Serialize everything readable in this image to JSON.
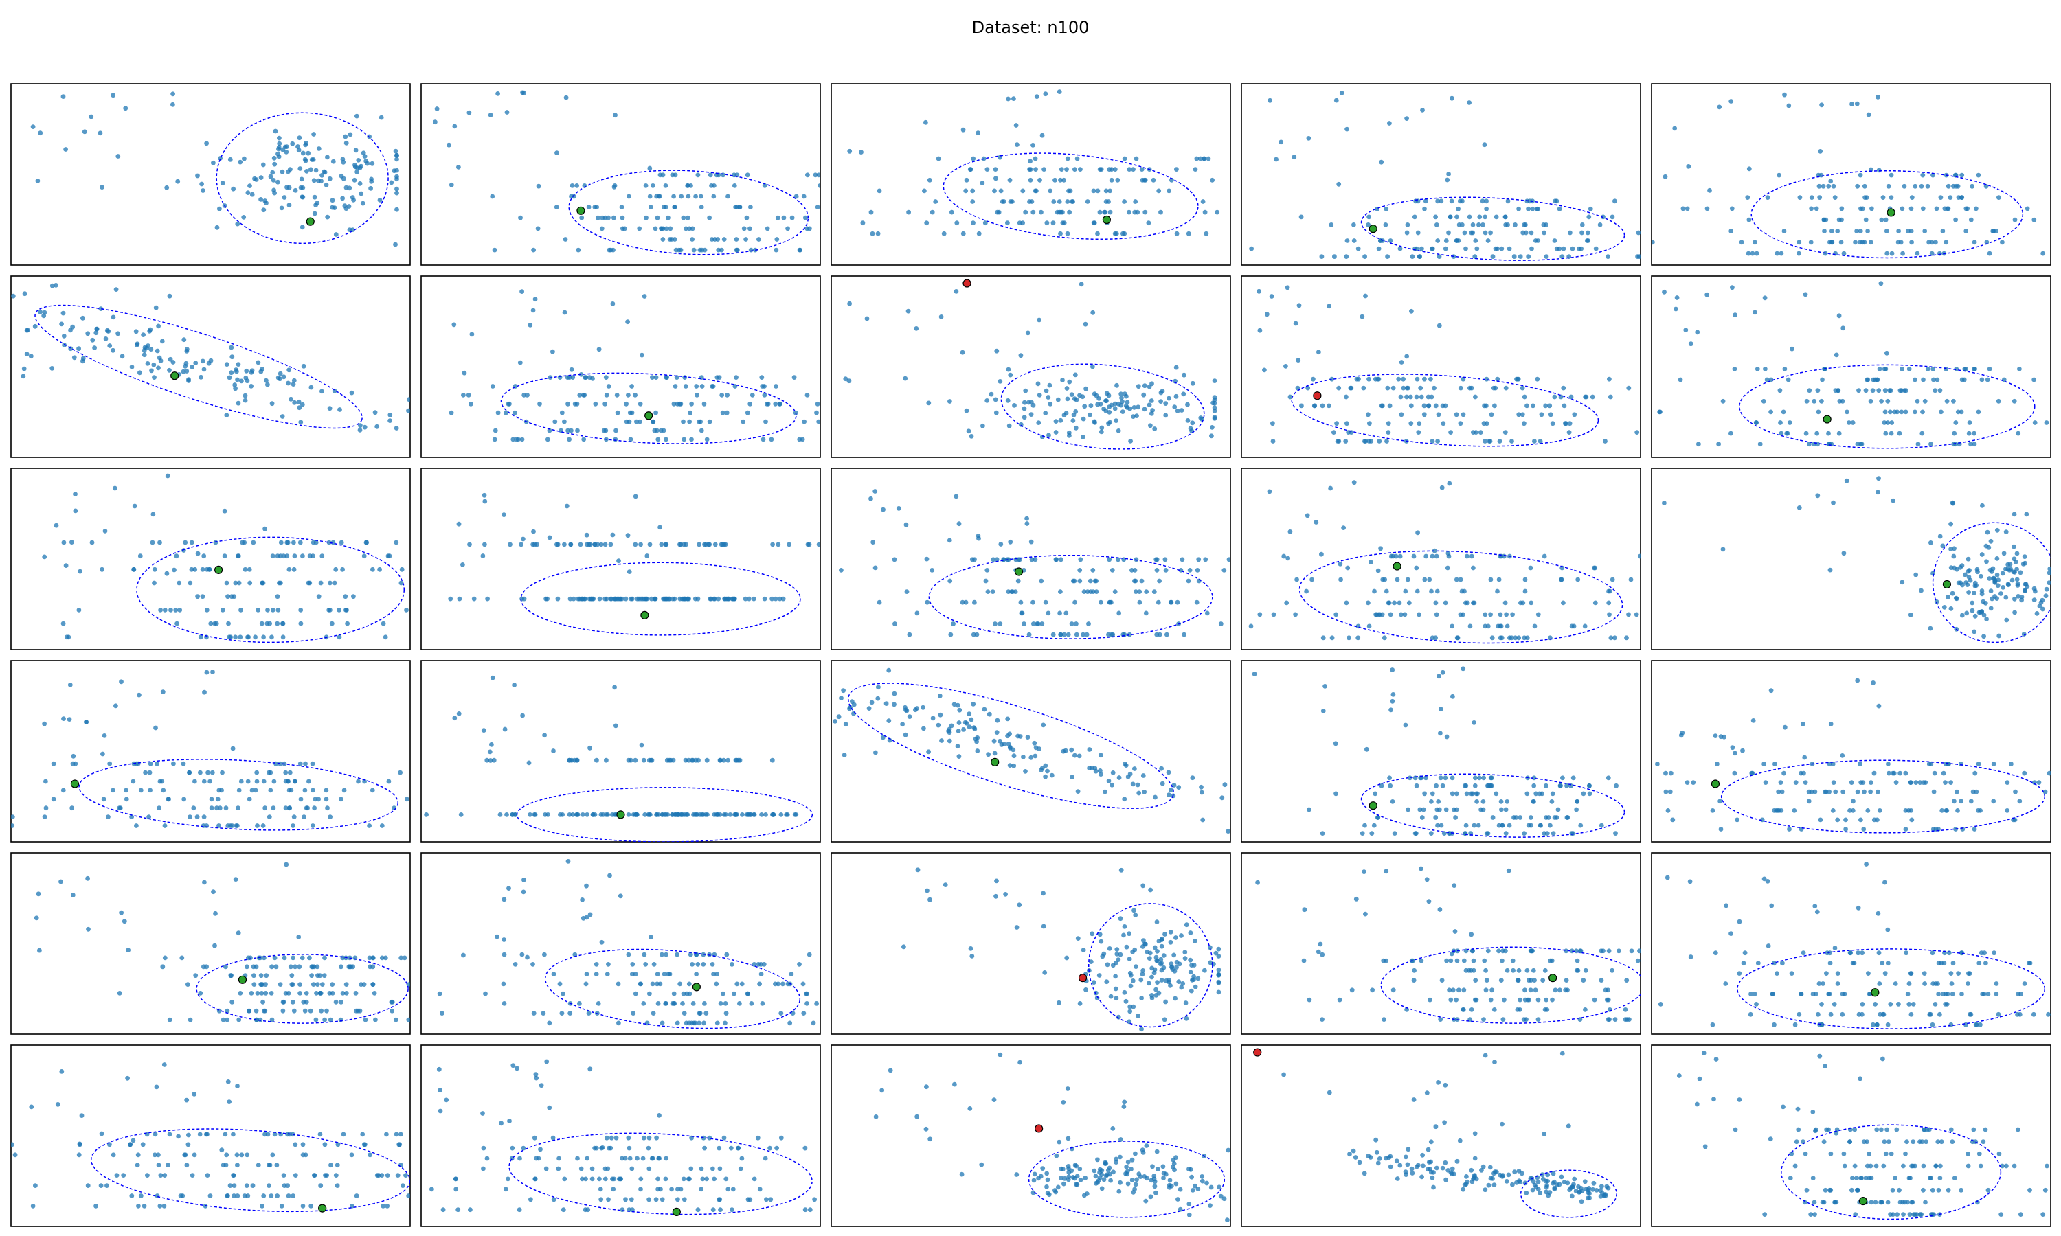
{
  "figure": {
    "title": "Dataset: n100",
    "rows": 6,
    "cols": 5,
    "colors": {
      "points": "#1f77b4",
      "ellipse": "#0000ff",
      "center_marker": "#2ca02c",
      "outlier_marker": "#d62728",
      "frame": "#000000"
    }
  },
  "chart_data": [
    {
      "type": "scatter",
      "row": 1,
      "col": 1,
      "pattern": "blob_right",
      "ellipse": {
        "center": [
          0.73,
          0.52
        ],
        "semi_axes": [
          0.43,
          0.36
        ],
        "angle_deg": 0
      },
      "markers": [
        {
          "kind": "center",
          "color": "#2ca02c",
          "x": 0.75,
          "y": 0.76
        }
      ]
    },
    {
      "type": "scatter",
      "row": 1,
      "col": 2,
      "pattern": "banded",
      "ellipse": {
        "center": [
          0.67,
          0.71
        ],
        "semi_axes": [
          0.6,
          0.23
        ],
        "angle_deg": 3
      },
      "markers": [
        {
          "kind": "center",
          "color": "#2ca02c",
          "x": 0.4,
          "y": 0.7
        }
      ]
    },
    {
      "type": "scatter",
      "row": 1,
      "col": 3,
      "pattern": "banded",
      "ellipse": {
        "center": [
          0.6,
          0.62
        ],
        "semi_axes": [
          0.64,
          0.23
        ],
        "angle_deg": 5
      },
      "markers": [
        {
          "kind": "center",
          "color": "#2ca02c",
          "x": 0.69,
          "y": 0.75
        }
      ]
    },
    {
      "type": "scatter",
      "row": 1,
      "col": 4,
      "pattern": "banded",
      "ellipse": {
        "center": [
          0.63,
          0.8
        ],
        "semi_axes": [
          0.66,
          0.17
        ],
        "angle_deg": 3
      },
      "markers": [
        {
          "kind": "center",
          "color": "#2ca02c",
          "x": 0.33,
          "y": 0.8
        }
      ]
    },
    {
      "type": "scatter",
      "row": 1,
      "col": 5,
      "pattern": "banded",
      "ellipse": {
        "center": [
          0.59,
          0.72
        ],
        "semi_axes": [
          0.68,
          0.24
        ],
        "angle_deg": 0
      },
      "markers": [
        {
          "kind": "center",
          "color": "#2ca02c",
          "x": 0.6,
          "y": 0.71
        }
      ]
    },
    {
      "type": "scatter",
      "row": 2,
      "col": 1,
      "pattern": "diagonal",
      "ellipse": {
        "center": [
          0.47,
          0.5
        ],
        "semi_axes": [
          0.86,
          0.18
        ],
        "angle_deg": 18
      },
      "markers": [
        {
          "kind": "center",
          "color": "#2ca02c",
          "x": 0.41,
          "y": 0.55
        }
      ]
    },
    {
      "type": "scatter",
      "row": 2,
      "col": 2,
      "pattern": "banded",
      "ellipse": {
        "center": [
          0.57,
          0.73
        ],
        "semi_axes": [
          0.74,
          0.19
        ],
        "angle_deg": 3
      },
      "markers": [
        {
          "kind": "center",
          "color": "#2ca02c",
          "x": 0.57,
          "y": 0.77
        }
      ]
    },
    {
      "type": "scatter",
      "row": 2,
      "col": 3,
      "pattern": "blob_right",
      "ellipse": {
        "center": [
          0.68,
          0.72
        ],
        "semi_axes": [
          0.51,
          0.23
        ],
        "angle_deg": 5
      },
      "markers": [
        {
          "kind": "outlier",
          "color": "#d62728",
          "x": 0.34,
          "y": 0.04
        }
      ]
    },
    {
      "type": "scatter",
      "row": 2,
      "col": 4,
      "pattern": "banded",
      "ellipse": {
        "center": [
          0.51,
          0.74
        ],
        "semi_axes": [
          0.77,
          0.19
        ],
        "angle_deg": 4
      },
      "markers": [
        {
          "kind": "outlier",
          "color": "#d62728",
          "x": 0.19,
          "y": 0.66
        }
      ]
    },
    {
      "type": "scatter",
      "row": 2,
      "col": 5,
      "pattern": "banded",
      "ellipse": {
        "center": [
          0.59,
          0.72
        ],
        "semi_axes": [
          0.74,
          0.23
        ],
        "angle_deg": 0
      },
      "markers": [
        {
          "kind": "center",
          "color": "#2ca02c",
          "x": 0.44,
          "y": 0.79
        }
      ]
    },
    {
      "type": "scatter",
      "row": 3,
      "col": 1,
      "pattern": "banded",
      "ellipse": {
        "center": [
          0.65,
          0.67
        ],
        "semi_axes": [
          0.67,
          0.29
        ],
        "angle_deg": 0
      },
      "markers": [
        {
          "kind": "center",
          "color": "#2ca02c",
          "x": 0.52,
          "y": 0.56
        }
      ]
    },
    {
      "type": "scatter",
      "row": 3,
      "col": 2,
      "pattern": "two_rows",
      "ellipse": {
        "center": [
          0.6,
          0.72
        ],
        "semi_axes": [
          0.7,
          0.2
        ],
        "angle_deg": 0
      },
      "markers": [
        {
          "kind": "center",
          "color": "#2ca02c",
          "x": 0.56,
          "y": 0.81
        }
      ]
    },
    {
      "type": "scatter",
      "row": 3,
      "col": 3,
      "pattern": "banded",
      "ellipse": {
        "center": [
          0.6,
          0.71
        ],
        "semi_axes": [
          0.71,
          0.23
        ],
        "angle_deg": 0
      },
      "markers": [
        {
          "kind": "center",
          "color": "#2ca02c",
          "x": 0.47,
          "y": 0.57
        }
      ]
    },
    {
      "type": "scatter",
      "row": 3,
      "col": 4,
      "pattern": "banded",
      "ellipse": {
        "center": [
          0.55,
          0.71
        ],
        "semi_axes": [
          0.81,
          0.25
        ],
        "angle_deg": 3
      },
      "markers": [
        {
          "kind": "center",
          "color": "#2ca02c",
          "x": 0.39,
          "y": 0.54
        }
      ]
    },
    {
      "type": "scatter",
      "row": 3,
      "col": 5,
      "pattern": "blob_right",
      "ellipse": {
        "center": [
          0.86,
          0.63
        ],
        "semi_axes": [
          0.31,
          0.33
        ],
        "angle_deg": 0
      },
      "markers": [
        {
          "kind": "center",
          "color": "#2ca02c",
          "x": 0.74,
          "y": 0.64
        }
      ]
    },
    {
      "type": "scatter",
      "row": 4,
      "col": 1,
      "pattern": "banded",
      "ellipse": {
        "center": [
          0.57,
          0.74
        ],
        "semi_axes": [
          0.8,
          0.19
        ],
        "angle_deg": 3
      },
      "markers": [
        {
          "kind": "center",
          "color": "#2ca02c",
          "x": 0.16,
          "y": 0.68
        }
      ]
    },
    {
      "type": "scatter",
      "row": 4,
      "col": 2,
      "pattern": "two_rows",
      "ellipse": {
        "center": [
          0.61,
          0.85
        ],
        "semi_axes": [
          0.74,
          0.15
        ],
        "angle_deg": 0
      },
      "markers": [
        {
          "kind": "center",
          "color": "#2ca02c",
          "x": 0.5,
          "y": 0.85
        }
      ]
    },
    {
      "type": "scatter",
      "row": 4,
      "col": 3,
      "pattern": "diagonal",
      "ellipse": {
        "center": [
          0.45,
          0.47
        ],
        "semi_axes": [
          0.85,
          0.22
        ],
        "angle_deg": 17
      },
      "markers": [
        {
          "kind": "center",
          "color": "#2ca02c",
          "x": 0.41,
          "y": 0.56
        }
      ]
    },
    {
      "type": "scatter",
      "row": 4,
      "col": 4,
      "pattern": "banded",
      "ellipse": {
        "center": [
          0.63,
          0.8
        ],
        "semi_axes": [
          0.66,
          0.17
        ],
        "angle_deg": 3
      },
      "markers": [
        {
          "kind": "center",
          "color": "#2ca02c",
          "x": 0.33,
          "y": 0.8
        }
      ]
    },
    {
      "type": "scatter",
      "row": 4,
      "col": 5,
      "pattern": "banded",
      "ellipse": {
        "center": [
          0.58,
          0.75
        ],
        "semi_axes": [
          0.81,
          0.2
        ],
        "angle_deg": 0
      },
      "markers": [
        {
          "kind": "center",
          "color": "#2ca02c",
          "x": 0.16,
          "y": 0.68
        }
      ]
    },
    {
      "type": "scatter",
      "row": 5,
      "col": 1,
      "pattern": "banded",
      "ellipse": {
        "center": [
          0.73,
          0.75
        ],
        "semi_axes": [
          0.53,
          0.19
        ],
        "angle_deg": 0
      },
      "markers": [
        {
          "kind": "center",
          "color": "#2ca02c",
          "x": 0.58,
          "y": 0.7
        }
      ]
    },
    {
      "type": "scatter",
      "row": 5,
      "col": 2,
      "pattern": "banded",
      "ellipse": {
        "center": [
          0.63,
          0.75
        ],
        "semi_axes": [
          0.64,
          0.21
        ],
        "angle_deg": 5
      },
      "markers": [
        {
          "kind": "center",
          "color": "#2ca02c",
          "x": 0.69,
          "y": 0.74
        }
      ]
    },
    {
      "type": "scatter",
      "row": 5,
      "col": 3,
      "pattern": "blob_right",
      "ellipse": {
        "center": [
          0.8,
          0.62
        ],
        "semi_axes": [
          0.31,
          0.34
        ],
        "angle_deg": 0
      },
      "markers": [
        {
          "kind": "outlier",
          "color": "#d62728",
          "x": 0.63,
          "y": 0.69
        }
      ]
    },
    {
      "type": "scatter",
      "row": 5,
      "col": 4,
      "pattern": "banded",
      "ellipse": {
        "center": [
          0.68,
          0.73
        ],
        "semi_axes": [
          0.66,
          0.21
        ],
        "angle_deg": 0
      },
      "markers": [
        {
          "kind": "center",
          "color": "#2ca02c",
          "x": 0.78,
          "y": 0.69
        }
      ]
    },
    {
      "type": "scatter",
      "row": 5,
      "col": 5,
      "pattern": "banded",
      "ellipse": {
        "center": [
          0.6,
          0.75
        ],
        "semi_axes": [
          0.77,
          0.22
        ],
        "angle_deg": 0
      },
      "markers": [
        {
          "kind": "center",
          "color": "#2ca02c",
          "x": 0.56,
          "y": 0.77
        }
      ]
    },
    {
      "type": "scatter",
      "row": 6,
      "col": 1,
      "pattern": "banded",
      "ellipse": {
        "center": [
          0.6,
          0.69
        ],
        "semi_axes": [
          0.8,
          0.22
        ],
        "angle_deg": 4
      },
      "markers": [
        {
          "kind": "center",
          "color": "#2ca02c",
          "x": 0.78,
          "y": 0.9
        }
      ]
    },
    {
      "type": "scatter",
      "row": 6,
      "col": 2,
      "pattern": "banded",
      "ellipse": {
        "center": [
          0.6,
          0.71
        ],
        "semi_axes": [
          0.76,
          0.22
        ],
        "angle_deg": 3
      },
      "markers": [
        {
          "kind": "center",
          "color": "#2ca02c",
          "x": 0.64,
          "y": 0.92
        }
      ]
    },
    {
      "type": "scatter",
      "row": 6,
      "col": 3,
      "pattern": "blob_right",
      "ellipse": {
        "center": [
          0.74,
          0.74
        ],
        "semi_axes": [
          0.49,
          0.21
        ],
        "angle_deg": 0
      },
      "markers": [
        {
          "kind": "outlier",
          "color": "#d62728",
          "x": 0.52,
          "y": 0.46
        }
      ]
    },
    {
      "type": "scatter",
      "row": 6,
      "col": 4,
      "pattern": "tail_right",
      "ellipse": {
        "center": [
          0.82,
          0.82
        ],
        "semi_axes": [
          0.24,
          0.13
        ],
        "angle_deg": 0
      },
      "markers": [
        {
          "kind": "outlier",
          "color": "#d62728",
          "x": 0.04,
          "y": 0.04
        }
      ]
    },
    {
      "type": "scatter",
      "row": 6,
      "col": 5,
      "pattern": "banded",
      "ellipse": {
        "center": [
          0.6,
          0.7
        ],
        "semi_axes": [
          0.55,
          0.26
        ],
        "angle_deg": 0
      },
      "markers": [
        {
          "kind": "center",
          "color": "#2ca02c",
          "x": 0.53,
          "y": 0.86
        }
      ]
    }
  ]
}
